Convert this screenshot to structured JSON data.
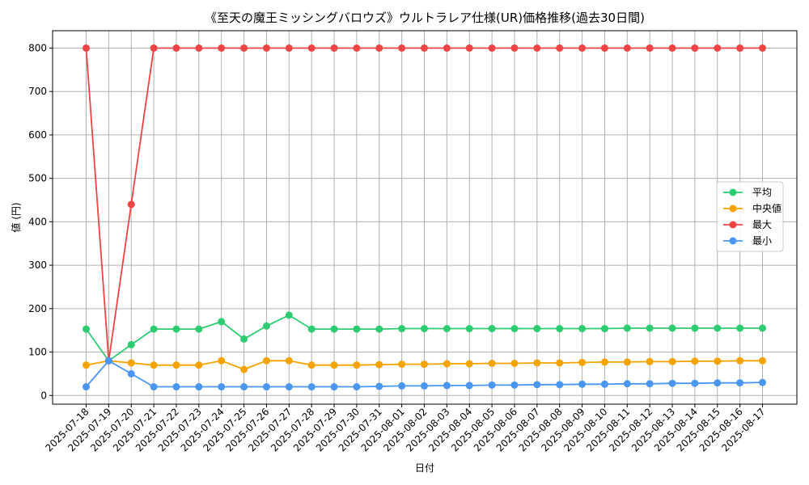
{
  "chart_data": {
    "type": "line",
    "title": "《至天の魔王ミッシングバロウズ》ウルトラレア仕様(UR)価格推移(過去30日間)",
    "xlabel": "日付",
    "ylabel": "値 (円)",
    "ylim": [
      -20,
      840
    ],
    "yticks": [
      0,
      100,
      200,
      300,
      400,
      500,
      600,
      700,
      800
    ],
    "grid": true,
    "legend_position": "right",
    "categories": [
      "2025-07-18",
      "2025-07-19",
      "2025-07-20",
      "2025-07-21",
      "2025-07-22",
      "2025-07-23",
      "2025-07-24",
      "2025-07-25",
      "2025-07-26",
      "2025-07-27",
      "2025-07-28",
      "2025-07-29",
      "2025-07-30",
      "2025-07-31",
      "2025-08-01",
      "2025-08-02",
      "2025-08-03",
      "2025-08-04",
      "2025-08-05",
      "2025-08-06",
      "2025-08-07",
      "2025-08-08",
      "2025-08-09",
      "2025-08-10",
      "2025-08-11",
      "2025-08-12",
      "2025-08-13",
      "2025-08-14",
      "2025-08-15",
      "2025-08-16",
      "2025-08-17"
    ],
    "series": [
      {
        "name": "平均",
        "color": "#2ecc71",
        "values": [
          153,
          80,
          117,
          153,
          153,
          153,
          170,
          130,
          160,
          185,
          153,
          153,
          153,
          153,
          154,
          154,
          154,
          154,
          154,
          154,
          154,
          154,
          154,
          154,
          155,
          155,
          155,
          155,
          155,
          155,
          155
        ]
      },
      {
        "name": "中央値",
        "color": "#f5a300",
        "values": [
          70,
          80,
          75,
          70,
          70,
          70,
          80,
          60,
          80,
          80,
          70,
          70,
          70,
          71,
          72,
          72,
          73,
          73,
          74,
          74,
          75,
          75,
          76,
          77,
          77,
          78,
          78,
          79,
          79,
          80,
          80
        ]
      },
      {
        "name": "最大",
        "color": "#ef4444",
        "values": [
          800,
          80,
          440,
          800,
          800,
          800,
          800,
          800,
          800,
          800,
          800,
          800,
          800,
          800,
          800,
          800,
          800,
          800,
          800,
          800,
          800,
          800,
          800,
          800,
          800,
          800,
          800,
          800,
          800,
          800,
          800
        ]
      },
      {
        "name": "最小",
        "color": "#4a96f0",
        "values": [
          20,
          80,
          50,
          20,
          20,
          20,
          20,
          20,
          20,
          20,
          20,
          20,
          20,
          21,
          22,
          22,
          23,
          23,
          24,
          24,
          25,
          25,
          26,
          26,
          27,
          27,
          28,
          28,
          29,
          29,
          30
        ]
      }
    ]
  }
}
